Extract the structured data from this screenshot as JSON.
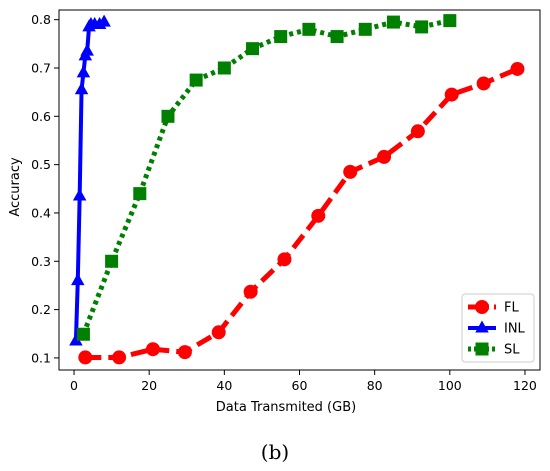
{
  "panel_label": "(b)",
  "chart_data": {
    "type": "line",
    "xlabel": "Data Transmited (GB)",
    "ylabel": "Accuracy",
    "xlim": [
      -4,
      124
    ],
    "ylim": [
      0.075,
      0.82
    ],
    "xticks": [
      0,
      20,
      40,
      60,
      80,
      100,
      120
    ],
    "yticks": [
      0.1,
      0.2,
      0.3,
      0.4,
      0.5,
      0.6,
      0.7,
      0.8
    ],
    "grid": false,
    "legend_position": "lower right",
    "series": [
      {
        "name": "FL",
        "color": "#ff0000",
        "linestyle": "dashed",
        "marker": "circle",
        "x": [
          3,
          12,
          21,
          29.5,
          38.5,
          47,
          56,
          65,
          73.5,
          82.5,
          91.5,
          100.5,
          109,
          118
        ],
        "y": [
          0.101,
          0.101,
          0.118,
          0.112,
          0.153,
          0.237,
          0.304,
          0.394,
          0.485,
          0.516,
          0.569,
          0.645,
          0.668,
          0.698
        ]
      },
      {
        "name": "INL",
        "color": "#0000ff",
        "linestyle": "solid",
        "marker": "triangle",
        "x": [
          0.5,
          1.0,
          1.5,
          2.0,
          2.5,
          3.0,
          3.5,
          4.0,
          4.5,
          5.5,
          6.8,
          8.0
        ],
        "y": [
          0.135,
          0.26,
          0.435,
          0.655,
          0.69,
          0.725,
          0.735,
          0.785,
          0.79,
          0.79,
          0.79,
          0.795
        ]
      },
      {
        "name": "SL",
        "color": "#008000",
        "linestyle": "dotted",
        "marker": "square",
        "x": [
          2.5,
          10,
          17.5,
          25,
          32.5,
          40,
          47.5,
          55,
          62.5,
          70,
          77.5,
          85,
          92.5,
          100
        ],
        "y": [
          0.149,
          0.3,
          0.44,
          0.6,
          0.675,
          0.7,
          0.74,
          0.765,
          0.78,
          0.765,
          0.78,
          0.795,
          0.785,
          0.798
        ]
      }
    ]
  }
}
